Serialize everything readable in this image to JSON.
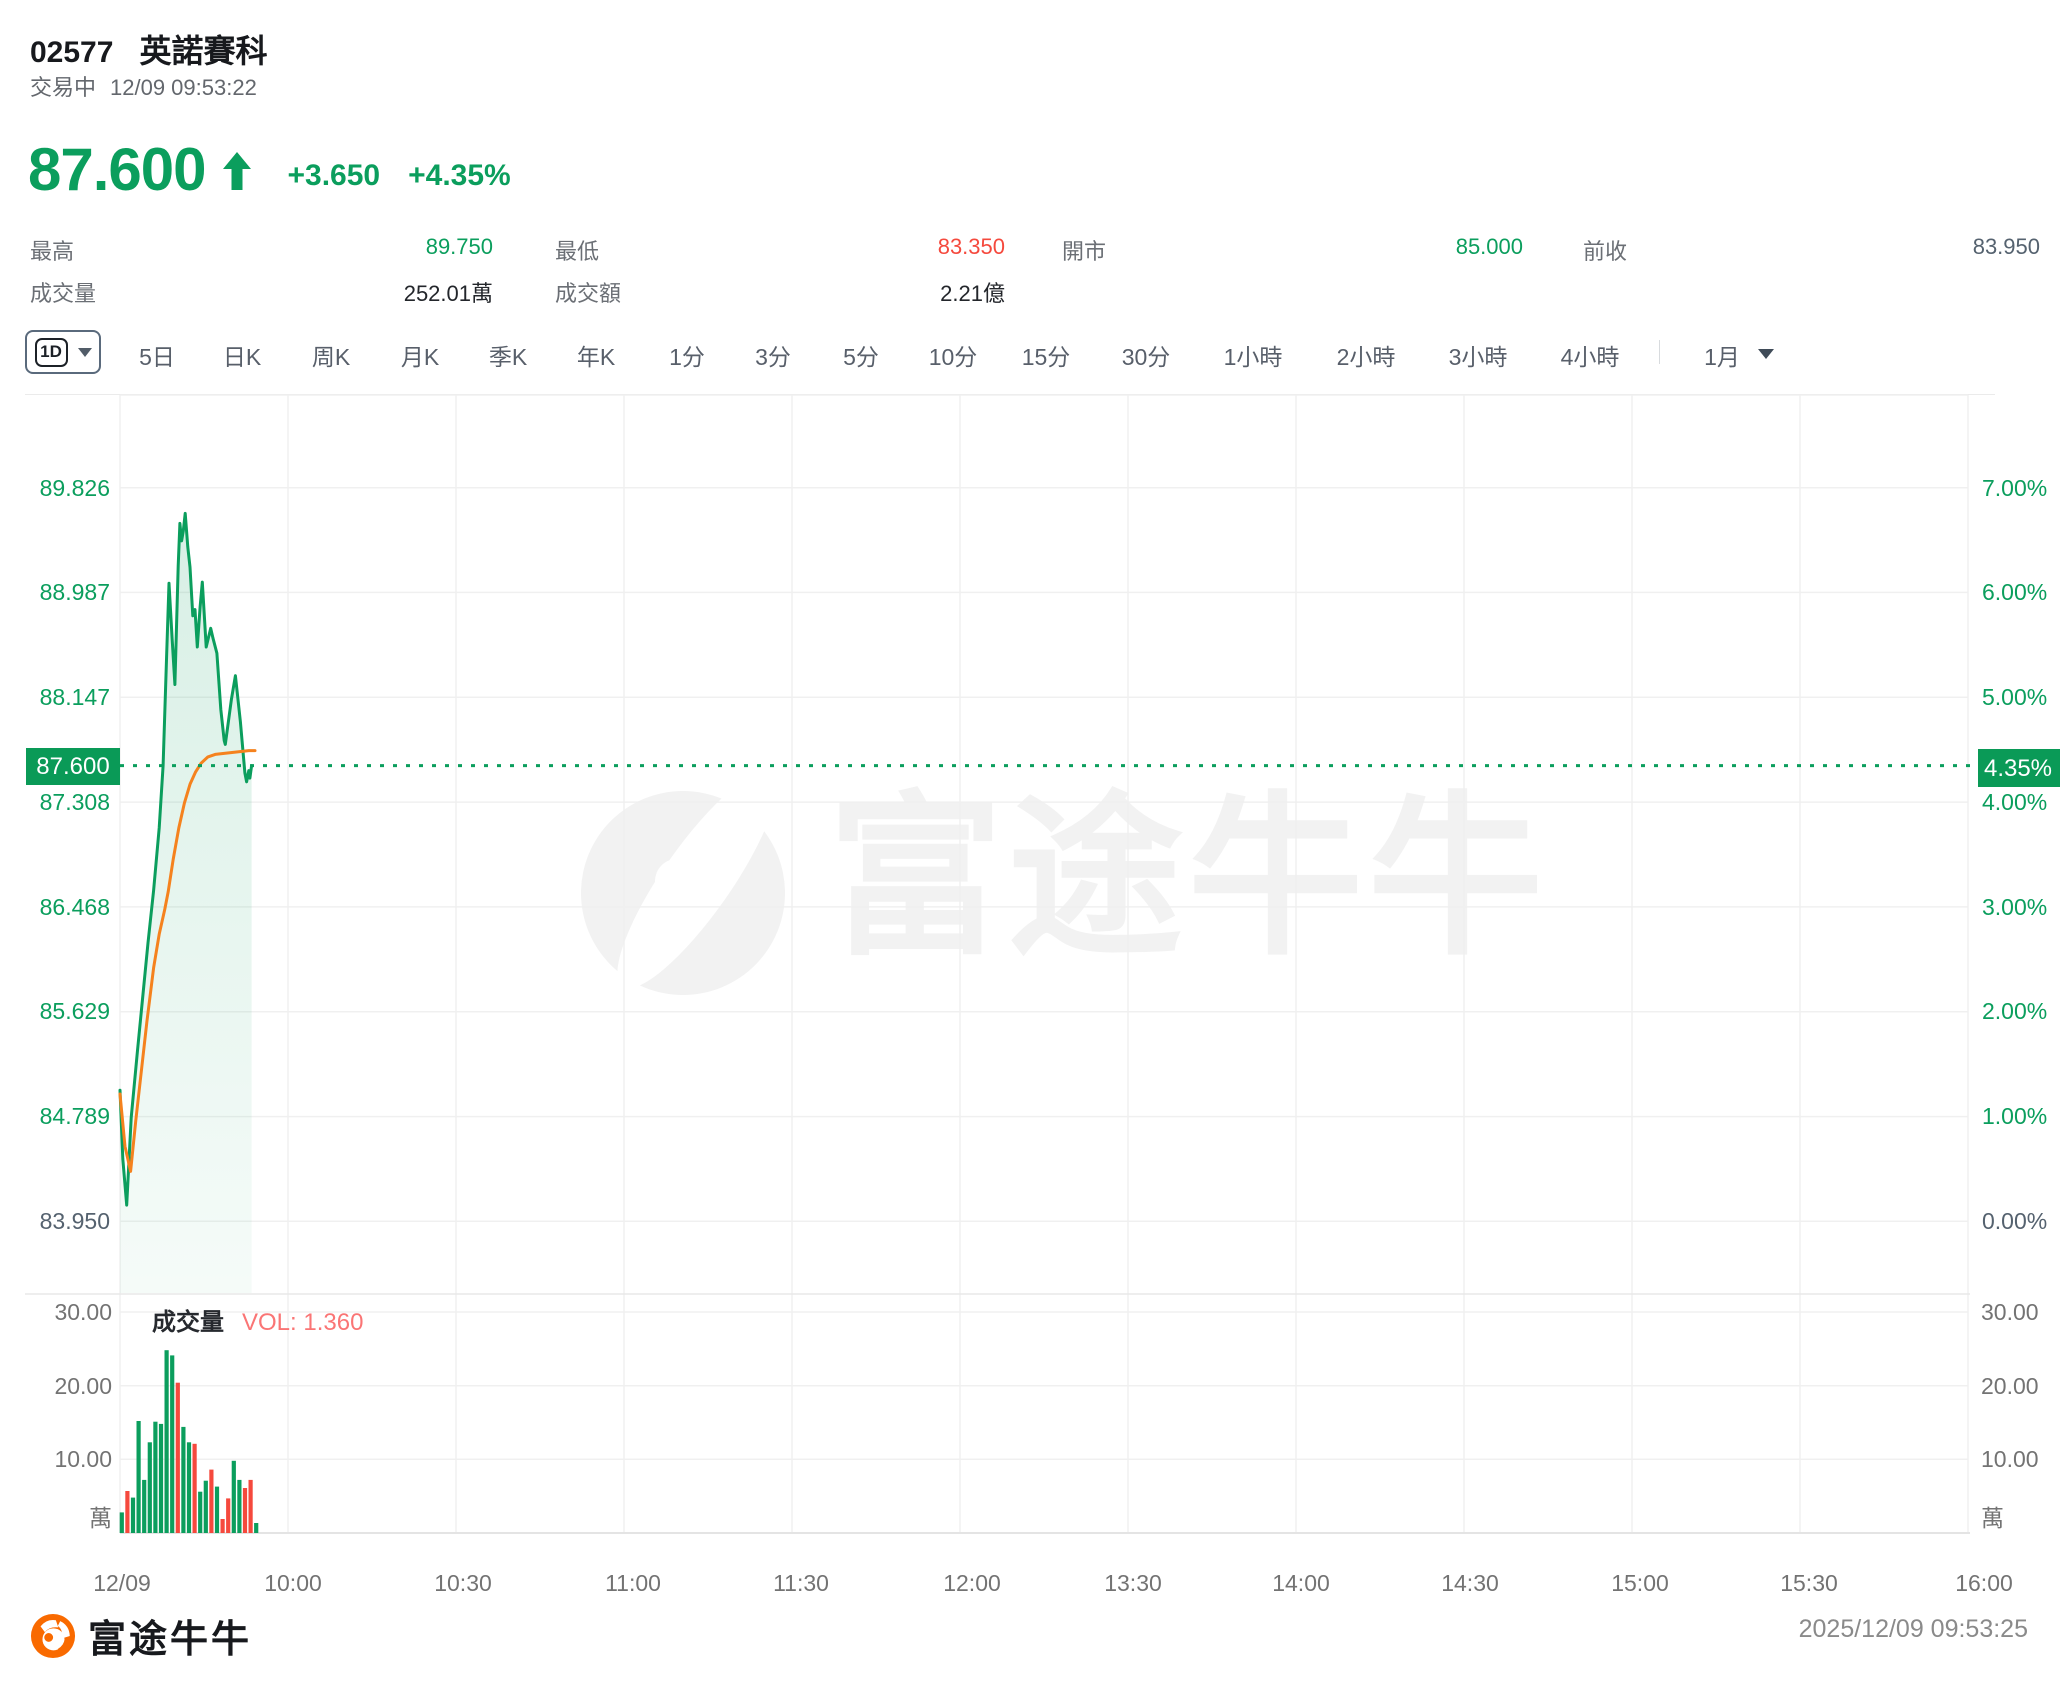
{
  "stock": {
    "code": "02577",
    "name": "英諾賽科"
  },
  "status": {
    "state": "交易中",
    "datetime": "12/09 09:53:22"
  },
  "quote": {
    "price": "87.600",
    "change": "+3.650",
    "change_pct": "+4.35%"
  },
  "stats": {
    "high_label": "最高",
    "high": "89.750",
    "low_label": "最低",
    "low": "83.350",
    "open_label": "開市",
    "open": "85.000",
    "prev_close_label": "前收",
    "prev_close": "83.950",
    "volume_label": "成交量",
    "volume": "252.01萬",
    "turnover_label": "成交額",
    "turnover": "2.21億"
  },
  "toolbar": {
    "selected": "1D",
    "items": [
      "5日",
      "日K",
      "周K",
      "月K",
      "季K",
      "年K",
      "1分",
      "3分",
      "5分",
      "10分",
      "15分",
      "30分",
      "1小時",
      "2小時",
      "3小時",
      "4小時"
    ],
    "more": "1月"
  },
  "chart_data": {
    "type": "line",
    "title": "02577 intraday 1-minute price chart",
    "y_axis_left": [
      "89.826",
      "88.987",
      "88.147",
      "87.308",
      "86.468",
      "85.629",
      "84.789",
      "83.950"
    ],
    "y_axis_right": [
      "7.00%",
      "6.00%",
      "5.00%",
      "4.00%",
      "3.00%",
      "2.00%",
      "1.00%",
      "0.00%"
    ],
    "y_levels": [
      89.826,
      88.987,
      88.147,
      87.308,
      86.468,
      85.629,
      84.789,
      83.95
    ],
    "current_price": "87.600",
    "current_pct": "4.35%",
    "current_value": 87.6,
    "x_ticks": [
      {
        "t": 0,
        "label": "12/09"
      },
      {
        "t": 30,
        "label": "10:00"
      },
      {
        "t": 60,
        "label": "10:30"
      },
      {
        "t": 90,
        "label": "11:00"
      },
      {
        "t": 120,
        "label": "11:30"
      },
      {
        "t": 150,
        "label": "12:00"
      },
      {
        "t": 180,
        "label": "13:30"
      },
      {
        "t": 210,
        "label": "14:00"
      },
      {
        "t": 240,
        "label": "14:30"
      },
      {
        "t": 270,
        "label": "15:00"
      },
      {
        "t": 300,
        "label": "15:30"
      },
      {
        "t": 330,
        "label": "16:00"
      }
    ],
    "price_series": [
      [
        0,
        85.0
      ],
      [
        0.5,
        84.45
      ],
      [
        1.2,
        84.08
      ],
      [
        2,
        84.78
      ],
      [
        3.1,
        85.31
      ],
      [
        4,
        85.72
      ],
      [
        5,
        86.18
      ],
      [
        6,
        86.6
      ],
      [
        7,
        87.1
      ],
      [
        7.7,
        87.6
      ],
      [
        8.3,
        88.45
      ],
      [
        8.75,
        89.06
      ],
      [
        9.3,
        88.62
      ],
      [
        9.8,
        88.25
      ],
      [
        10.4,
        89.2
      ],
      [
        10.7,
        89.54
      ],
      [
        11.0,
        89.4
      ],
      [
        11.3,
        89.48
      ],
      [
        11.65,
        89.62
      ],
      [
        12.1,
        89.35
      ],
      [
        12.5,
        89.19
      ],
      [
        13.0,
        88.8
      ],
      [
        13.4,
        88.85
      ],
      [
        13.8,
        88.55
      ],
      [
        14.3,
        88.87
      ],
      [
        14.7,
        89.07
      ],
      [
        15.4,
        88.55
      ],
      [
        16.2,
        88.7
      ],
      [
        16.6,
        88.62
      ],
      [
        17.3,
        88.5
      ],
      [
        18.0,
        88.05
      ],
      [
        18.6,
        87.8
      ],
      [
        18.8,
        87.77
      ],
      [
        19.9,
        88.13
      ],
      [
        20.6,
        88.32
      ],
      [
        21.5,
        87.95
      ],
      [
        22.3,
        87.54
      ],
      [
        22.6,
        87.47
      ],
      [
        23.0,
        87.56
      ],
      [
        23.2,
        87.5
      ],
      [
        23.5,
        87.6
      ]
    ],
    "avg_series": [
      [
        0,
        84.97
      ],
      [
        0.9,
        84.55
      ],
      [
        1.9,
        84.35
      ],
      [
        2.8,
        84.75
      ],
      [
        3.8,
        85.15
      ],
      [
        4.8,
        85.55
      ],
      [
        6,
        85.98
      ],
      [
        7,
        86.25
      ],
      [
        8,
        86.45
      ],
      [
        8.6,
        86.59
      ],
      [
        9.5,
        86.85
      ],
      [
        10.5,
        87.1
      ],
      [
        11.5,
        87.3
      ],
      [
        12.5,
        87.45
      ],
      [
        13.5,
        87.55
      ],
      [
        14.5,
        87.62
      ],
      [
        15.7,
        87.67
      ],
      [
        17,
        87.69
      ],
      [
        19,
        87.7
      ],
      [
        21,
        87.71
      ],
      [
        23,
        87.72
      ],
      [
        24.1,
        87.72
      ]
    ],
    "volume_pane": {
      "title": "成交量",
      "vol_label": "VOL: 1.360",
      "y_ticks": [
        "30.00",
        "20.00",
        "10.00"
      ],
      "unit": "萬",
      "bars": [
        {
          "t": 0,
          "v": 2.8,
          "dir": "up"
        },
        {
          "t": 1,
          "v": 5.7,
          "dir": "down"
        },
        {
          "t": 2,
          "v": 4.8,
          "dir": "up"
        },
        {
          "t": 3,
          "v": 15.2,
          "dir": "up"
        },
        {
          "t": 4,
          "v": 7.2,
          "dir": "up"
        },
        {
          "t": 5,
          "v": 12.3,
          "dir": "up"
        },
        {
          "t": 6,
          "v": 15.1,
          "dir": "up"
        },
        {
          "t": 7,
          "v": 14.8,
          "dir": "up"
        },
        {
          "t": 8,
          "v": 24.8,
          "dir": "up"
        },
        {
          "t": 9,
          "v": 24.1,
          "dir": "up"
        },
        {
          "t": 10,
          "v": 20.4,
          "dir": "down"
        },
        {
          "t": 11,
          "v": 14.4,
          "dir": "up"
        },
        {
          "t": 12,
          "v": 12.3,
          "dir": "up"
        },
        {
          "t": 13,
          "v": 12.1,
          "dir": "down"
        },
        {
          "t": 14,
          "v": 5.6,
          "dir": "up"
        },
        {
          "t": 15,
          "v": 7.1,
          "dir": "up"
        },
        {
          "t": 16,
          "v": 8.6,
          "dir": "down"
        },
        {
          "t": 17,
          "v": 6.3,
          "dir": "up"
        },
        {
          "t": 18,
          "v": 1.9,
          "dir": "down"
        },
        {
          "t": 19,
          "v": 4.7,
          "dir": "down"
        },
        {
          "t": 20,
          "v": 9.8,
          "dir": "up"
        },
        {
          "t": 21,
          "v": 7.2,
          "dir": "up"
        },
        {
          "t": 22,
          "v": 6.1,
          "dir": "down"
        },
        {
          "t": 23,
          "v": 7.2,
          "dir": "down"
        },
        {
          "t": 24,
          "v": 1.36,
          "dir": "up"
        }
      ]
    },
    "watermark": "富途牛牛",
    "colors": {
      "up": "#0b9e5d",
      "down": "#f5493d",
      "avg_line": "#f5821e",
      "neutral": "#55626f"
    }
  },
  "footer": {
    "brand": "富途牛牛",
    "timestamp": "2025/12/09 09:53:25"
  }
}
